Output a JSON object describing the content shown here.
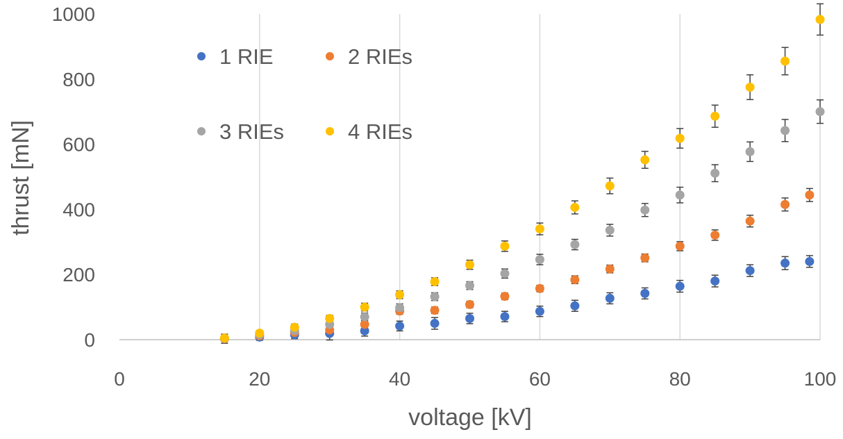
{
  "chart_data": {
    "type": "scatter",
    "title": "",
    "xlabel": "voltage [kV]",
    "ylabel": "thrust [mN]",
    "xlim": [
      0,
      100
    ],
    "ylim": [
      0,
      1000
    ],
    "xticks": [
      0,
      20,
      40,
      60,
      80,
      100
    ],
    "yticks": [
      0,
      200,
      400,
      600,
      800,
      1000
    ],
    "grid": "vertical",
    "legend": {
      "placement": "top-left-inside",
      "entries": [
        "1 RIE",
        "2 RIEs",
        "3 RIEs",
        "4 RIEs"
      ]
    },
    "error_bars": true,
    "series": [
      {
        "name": "1 RIE",
        "color": "#4472C4",
        "points": [
          {
            "x": 15,
            "y": 3,
            "err": 14
          },
          {
            "x": 20,
            "y": 8,
            "err": 10
          },
          {
            "x": 25,
            "y": 15,
            "err": 12
          },
          {
            "x": 30,
            "y": 19,
            "err": 20
          },
          {
            "x": 35,
            "y": 27,
            "err": 16
          },
          {
            "x": 40,
            "y": 42,
            "err": 15
          },
          {
            "x": 45,
            "y": 50,
            "err": 18
          },
          {
            "x": 50,
            "y": 65,
            "err": 16
          },
          {
            "x": 55,
            "y": 71,
            "err": 16
          },
          {
            "x": 60,
            "y": 87,
            "err": 16
          },
          {
            "x": 65,
            "y": 104,
            "err": 17
          },
          {
            "x": 70,
            "y": 127,
            "err": 17
          },
          {
            "x": 75,
            "y": 142,
            "err": 17
          },
          {
            "x": 80,
            "y": 164,
            "err": 18
          },
          {
            "x": 85,
            "y": 180,
            "err": 18
          },
          {
            "x": 90,
            "y": 212,
            "err": 18
          },
          {
            "x": 95,
            "y": 235,
            "err": 20
          },
          {
            "x": 98.5,
            "y": 240,
            "err": 18
          }
        ]
      },
      {
        "name": "2 RIEs",
        "color": "#ED7D31",
        "points": [
          {
            "x": 15,
            "y": 3,
            "err": 6
          },
          {
            "x": 20,
            "y": 12,
            "err": 8
          },
          {
            "x": 25,
            "y": 22,
            "err": 10
          },
          {
            "x": 30,
            "y": 30,
            "err": 10
          },
          {
            "x": 35,
            "y": 47,
            "err": 12
          },
          {
            "x": 40,
            "y": 88,
            "err": 10
          },
          {
            "x": 45,
            "y": 90,
            "err": 10
          },
          {
            "x": 50,
            "y": 108,
            "err": 10
          },
          {
            "x": 55,
            "y": 133,
            "err": 10
          },
          {
            "x": 60,
            "y": 157,
            "err": 10
          },
          {
            "x": 65,
            "y": 184,
            "err": 12
          },
          {
            "x": 70,
            "y": 217,
            "err": 12
          },
          {
            "x": 75,
            "y": 251,
            "err": 12
          },
          {
            "x": 80,
            "y": 287,
            "err": 14
          },
          {
            "x": 85,
            "y": 321,
            "err": 16
          },
          {
            "x": 90,
            "y": 364,
            "err": 18
          },
          {
            "x": 95,
            "y": 415,
            "err": 20
          },
          {
            "x": 98.5,
            "y": 444,
            "err": 20
          }
        ]
      },
      {
        "name": "3 RIEs",
        "color": "#A5A5A5",
        "points": [
          {
            "x": 15,
            "y": 4,
            "err": 6
          },
          {
            "x": 20,
            "y": 15,
            "err": 8
          },
          {
            "x": 25,
            "y": 28,
            "err": 10
          },
          {
            "x": 30,
            "y": 47,
            "err": 10
          },
          {
            "x": 35,
            "y": 70,
            "err": 12
          },
          {
            "x": 40,
            "y": 98,
            "err": 12
          },
          {
            "x": 45,
            "y": 132,
            "err": 12
          },
          {
            "x": 50,
            "y": 166,
            "err": 12
          },
          {
            "x": 55,
            "y": 203,
            "err": 14
          },
          {
            "x": 60,
            "y": 246,
            "err": 16
          },
          {
            "x": 65,
            "y": 292,
            "err": 16
          },
          {
            "x": 70,
            "y": 336,
            "err": 18
          },
          {
            "x": 75,
            "y": 398,
            "err": 20
          },
          {
            "x": 80,
            "y": 444,
            "err": 24
          },
          {
            "x": 85,
            "y": 511,
            "err": 26
          },
          {
            "x": 90,
            "y": 577,
            "err": 30
          },
          {
            "x": 95,
            "y": 642,
            "err": 34
          },
          {
            "x": 100,
            "y": 700,
            "err": 36
          }
        ]
      },
      {
        "name": "4 RIEs",
        "color": "#FFC000",
        "points": [
          {
            "x": 15,
            "y": 5,
            "err": 6
          },
          {
            "x": 20,
            "y": 20,
            "err": 8
          },
          {
            "x": 25,
            "y": 38,
            "err": 10
          },
          {
            "x": 30,
            "y": 65,
            "err": 10
          },
          {
            "x": 35,
            "y": 100,
            "err": 12
          },
          {
            "x": 40,
            "y": 138,
            "err": 12
          },
          {
            "x": 45,
            "y": 178,
            "err": 12
          },
          {
            "x": 50,
            "y": 230,
            "err": 14
          },
          {
            "x": 55,
            "y": 287,
            "err": 16
          },
          {
            "x": 60,
            "y": 340,
            "err": 18
          },
          {
            "x": 65,
            "y": 406,
            "err": 20
          },
          {
            "x": 70,
            "y": 472,
            "err": 24
          },
          {
            "x": 75,
            "y": 552,
            "err": 26
          },
          {
            "x": 80,
            "y": 618,
            "err": 30
          },
          {
            "x": 85,
            "y": 686,
            "err": 34
          },
          {
            "x": 90,
            "y": 775,
            "err": 38
          },
          {
            "x": 95,
            "y": 855,
            "err": 42
          },
          {
            "x": 100,
            "y": 983,
            "err": 48
          }
        ]
      }
    ]
  }
}
